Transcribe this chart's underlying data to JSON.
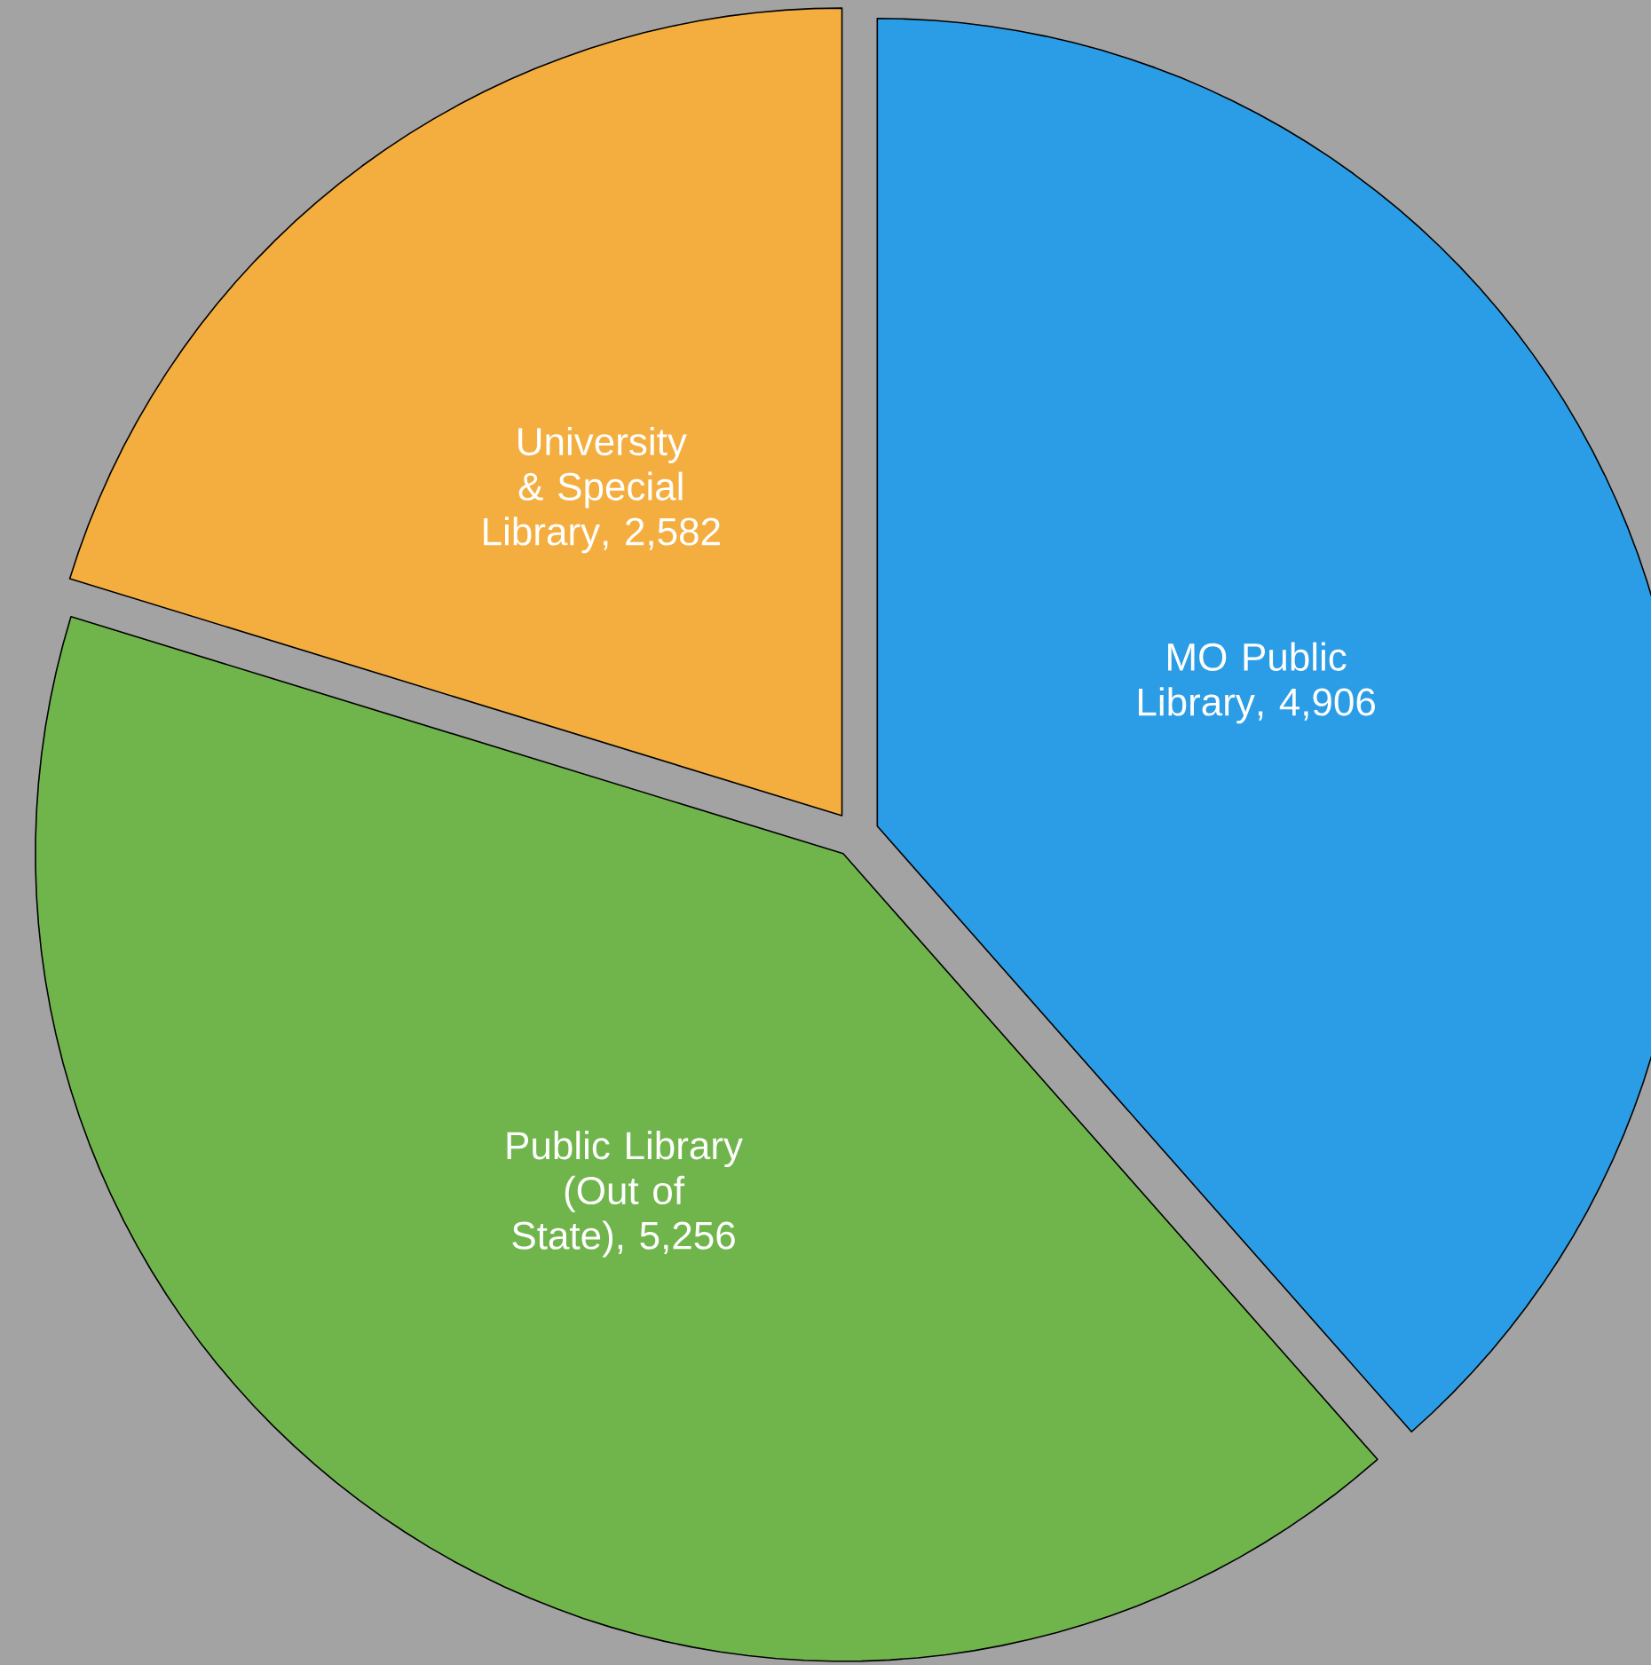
{
  "chart_data": {
    "type": "pie",
    "categories": [
      "MO Public Library",
      "Public Library (Out of State)",
      "University & Special Library"
    ],
    "values": [
      4906,
      5256,
      2582
    ],
    "value_labels": [
      ", 4,906",
      ", 5,256",
      ", 2,582"
    ],
    "colors": [
      "#2b9de6",
      "#70b54c",
      "#f4ae3f"
    ]
  }
}
